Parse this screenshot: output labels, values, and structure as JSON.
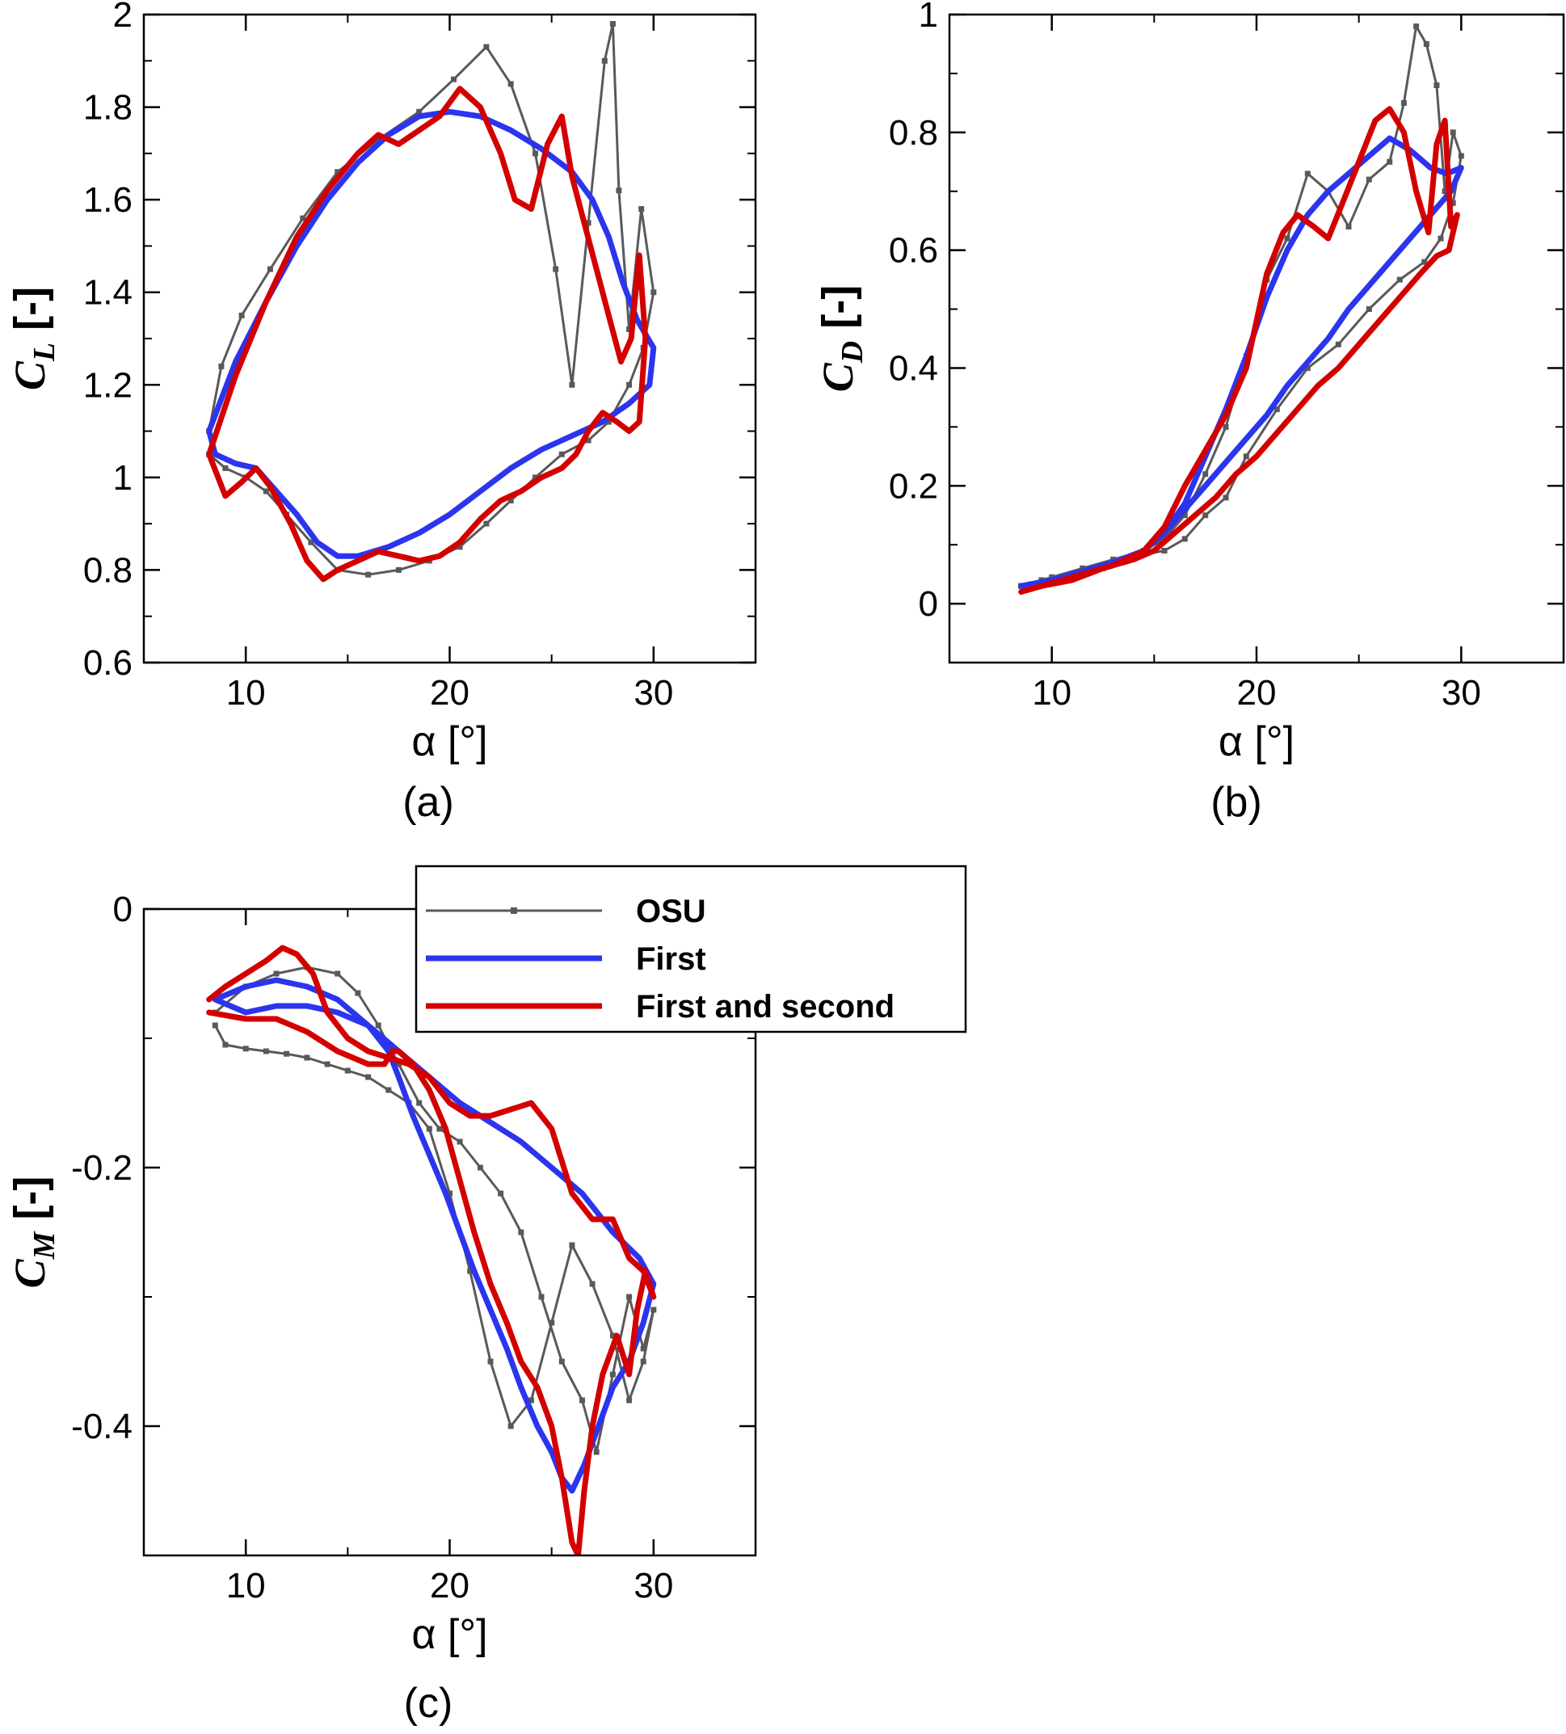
{
  "figure": {
    "legend": {
      "entries": [
        {
          "label": "OSU",
          "color": "#595959",
          "marker": "square"
        },
        {
          "label": "First",
          "color": "#2b35ee",
          "marker": "none"
        },
        {
          "label": "First and second",
          "color": "#d40000",
          "marker": "none"
        }
      ]
    }
  },
  "chart_data": [
    {
      "type": "line",
      "caption": "(a)",
      "xlabel": "α [°]",
      "ylabel_symbol": "C",
      "ylabel_sub": "L",
      "ylabel_unit": " [-]",
      "xlim": [
        5,
        35
      ],
      "ylim": [
        0.6,
        2.0
      ],
      "xticks": [
        10,
        20,
        30
      ],
      "yticks": [
        0.6,
        0.8,
        1.0,
        1.2,
        1.4,
        1.6,
        1.8,
        2.0
      ],
      "ytick_labels": [
        "0.6",
        "0.8",
        "1",
        "1.2",
        "1.4",
        "1.6",
        "1.8",
        "2"
      ],
      "series": [
        {
          "name": "OSU",
          "x": [
            8.2,
            8.8,
            9.8,
            11.2,
            12.8,
            14.5,
            16.5,
            18.5,
            20.2,
            21.8,
            23.0,
            24.2,
            25.2,
            26.0,
            26.8,
            27.6,
            28.0,
            28.3,
            28.8,
            29.4,
            30.0,
            29.5,
            28.8,
            27.8,
            26.8,
            25.5,
            24.2,
            23.0,
            21.8,
            20.5,
            19.0,
            17.5,
            16.0,
            14.5,
            13.2,
            12.0,
            11.0,
            10.0,
            9.0,
            8.2
          ],
          "y": [
            1.1,
            1.24,
            1.35,
            1.45,
            1.56,
            1.66,
            1.73,
            1.79,
            1.86,
            1.93,
            1.85,
            1.7,
            1.45,
            1.2,
            1.55,
            1.9,
            1.98,
            1.62,
            1.32,
            1.58,
            1.4,
            1.28,
            1.2,
            1.12,
            1.08,
            1.05,
            1.0,
            0.95,
            0.9,
            0.85,
            0.82,
            0.8,
            0.79,
            0.8,
            0.86,
            0.92,
            0.97,
            1.0,
            1.02,
            1.05
          ]
        },
        {
          "name": "First",
          "x": [
            8.2,
            9.5,
            11.0,
            12.5,
            14.0,
            15.5,
            17.0,
            18.5,
            20.0,
            21.5,
            23.0,
            24.5,
            26.0,
            27.0,
            27.8,
            28.5,
            29.2,
            30.0,
            29.8,
            28.8,
            27.5,
            26.0,
            24.5,
            23.0,
            21.5,
            20.0,
            18.5,
            17.0,
            15.5,
            14.5,
            13.5,
            12.5,
            11.5,
            10.5,
            9.5,
            8.5,
            8.2
          ],
          "y": [
            1.1,
            1.25,
            1.38,
            1.5,
            1.6,
            1.68,
            1.74,
            1.78,
            1.79,
            1.78,
            1.75,
            1.71,
            1.66,
            1.6,
            1.52,
            1.42,
            1.34,
            1.28,
            1.2,
            1.16,
            1.12,
            1.09,
            1.06,
            1.02,
            0.97,
            0.92,
            0.88,
            0.85,
            0.83,
            0.83,
            0.86,
            0.92,
            0.97,
            1.02,
            1.03,
            1.05,
            1.1
          ]
        },
        {
          "name": "First and second",
          "x": [
            8.2,
            9.5,
            11.0,
            12.5,
            14.0,
            15.5,
            16.5,
            17.5,
            18.5,
            19.5,
            20.5,
            21.5,
            22.5,
            23.2,
            24.0,
            24.8,
            25.5,
            26.0,
            26.6,
            27.2,
            27.8,
            28.4,
            28.9,
            29.3,
            29.6,
            29.3,
            28.8,
            28.2,
            27.5,
            26.8,
            26.2,
            25.5,
            24.5,
            23.5,
            22.5,
            21.5,
            20.5,
            19.5,
            18.5,
            17.5,
            16.5,
            15.5,
            14.5,
            13.8,
            13.0,
            12.2,
            11.2,
            10.5,
            9.8,
            9.0,
            8.2
          ],
          "y": [
            1.05,
            1.22,
            1.38,
            1.52,
            1.62,
            1.7,
            1.74,
            1.72,
            1.75,
            1.78,
            1.84,
            1.8,
            1.7,
            1.6,
            1.58,
            1.72,
            1.78,
            1.65,
            1.55,
            1.45,
            1.35,
            1.25,
            1.3,
            1.48,
            1.3,
            1.12,
            1.1,
            1.12,
            1.14,
            1.1,
            1.05,
            1.02,
            1.0,
            0.97,
            0.95,
            0.91,
            0.86,
            0.83,
            0.82,
            0.83,
            0.84,
            0.82,
            0.8,
            0.78,
            0.82,
            0.9,
            0.98,
            1.02,
            0.99,
            0.96,
            1.05
          ]
        }
      ]
    },
    {
      "type": "line",
      "caption": "(b)",
      "xlabel": "α [°]",
      "ylabel_symbol": "C",
      "ylabel_sub": "D",
      "ylabel_unit": " [-]",
      "xlim": [
        5,
        35
      ],
      "ylim": [
        -0.1,
        1.0
      ],
      "xticks": [
        10,
        20,
        30
      ],
      "yticks": [
        0,
        0.2,
        0.4,
        0.6,
        0.8,
        1.0
      ],
      "ytick_labels": [
        "0",
        "0.2",
        "0.4",
        "0.6",
        "0.8",
        "1"
      ],
      "series": [
        {
          "name": "OSU",
          "x": [
            8.5,
            10.0,
            11.5,
            13.0,
            14.5,
            15.5,
            16.5,
            17.5,
            18.5,
            19.5,
            20.5,
            21.5,
            22.5,
            23.5,
            24.5,
            25.5,
            26.5,
            27.2,
            27.8,
            28.3,
            28.8,
            29.2,
            29.6,
            30.0,
            29.6,
            29.0,
            28.2,
            27.0,
            25.5,
            24.0,
            22.5,
            21.0,
            19.5,
            18.5,
            17.5,
            16.5,
            15.5,
            14.0,
            12.5,
            11.0,
            9.5,
            8.5
          ],
          "y": [
            0.03,
            0.045,
            0.06,
            0.075,
            0.09,
            0.11,
            0.15,
            0.22,
            0.3,
            0.42,
            0.55,
            0.62,
            0.73,
            0.7,
            0.64,
            0.72,
            0.75,
            0.85,
            0.98,
            0.95,
            0.88,
            0.7,
            0.8,
            0.76,
            0.68,
            0.62,
            0.58,
            0.55,
            0.5,
            0.44,
            0.4,
            0.33,
            0.25,
            0.18,
            0.15,
            0.11,
            0.09,
            0.08,
            0.06,
            0.05,
            0.04,
            0.03
          ]
        },
        {
          "name": "First",
          "x": [
            8.5,
            10.0,
            11.5,
            13.0,
            14.5,
            15.5,
            16.5,
            17.5,
            18.5,
            19.5,
            20.5,
            21.5,
            22.5,
            23.5,
            24.5,
            25.5,
            26.5,
            27.5,
            28.5,
            29.3,
            30.0,
            29.5,
            28.5,
            27.5,
            26.5,
            25.5,
            24.5,
            23.5,
            22.5,
            21.5,
            20.5,
            19.5,
            18.5,
            17.5,
            16.5,
            15.5,
            14.5,
            13.0,
            11.5,
            10.0,
            8.5
          ],
          "y": [
            0.03,
            0.04,
            0.055,
            0.07,
            0.09,
            0.12,
            0.17,
            0.25,
            0.33,
            0.42,
            0.52,
            0.6,
            0.66,
            0.7,
            0.73,
            0.76,
            0.79,
            0.77,
            0.74,
            0.73,
            0.74,
            0.7,
            0.66,
            0.62,
            0.58,
            0.54,
            0.5,
            0.45,
            0.41,
            0.37,
            0.32,
            0.28,
            0.24,
            0.2,
            0.16,
            0.12,
            0.09,
            0.07,
            0.05,
            0.04,
            0.03
          ]
        },
        {
          "name": "First and second",
          "x": [
            8.5,
            10.0,
            11.5,
            13.0,
            14.5,
            15.5,
            16.5,
            17.5,
            18.5,
            19.5,
            20.5,
            21.3,
            22.0,
            22.8,
            23.5,
            24.2,
            25.0,
            25.8,
            26.5,
            27.2,
            27.8,
            28.4,
            28.8,
            29.2,
            29.5,
            29.8,
            29.4,
            28.8,
            28.0,
            27.0,
            26.0,
            25.0,
            24.0,
            23.0,
            22.0,
            21.0,
            20.0,
            19.0,
            18.0,
            17.0,
            16.0,
            15.0,
            14.0,
            12.5,
            11.0,
            9.5,
            8.5
          ],
          "y": [
            0.02,
            0.035,
            0.05,
            0.065,
            0.09,
            0.13,
            0.2,
            0.26,
            0.32,
            0.4,
            0.56,
            0.63,
            0.66,
            0.64,
            0.62,
            0.68,
            0.75,
            0.82,
            0.84,
            0.8,
            0.7,
            0.63,
            0.78,
            0.82,
            0.64,
            0.66,
            0.6,
            0.59,
            0.56,
            0.52,
            0.48,
            0.44,
            0.4,
            0.37,
            0.33,
            0.29,
            0.25,
            0.22,
            0.18,
            0.15,
            0.12,
            0.09,
            0.075,
            0.06,
            0.04,
            0.03,
            0.02
          ]
        }
      ]
    },
    {
      "type": "line",
      "caption": "(c)",
      "xlabel": "α [°]",
      "ylabel_symbol": "C",
      "ylabel_sub": "M",
      "ylabel_unit": " [-]",
      "xlim": [
        5,
        35
      ],
      "ylim": [
        -0.5,
        0.0
      ],
      "xticks": [
        10,
        20,
        30
      ],
      "yticks": [
        0,
        -0.2,
        -0.4
      ],
      "ytick_labels": [
        "0",
        "-0.2",
        "-0.4"
      ],
      "series": [
        {
          "name": "OSU",
          "x": [
            8.5,
            10.0,
            11.5,
            13.0,
            14.5,
            15.5,
            16.5,
            17.5,
            18.5,
            19.5,
            20.5,
            21.5,
            22.5,
            23.5,
            24.5,
            25.5,
            26.5,
            27.2,
            28.0,
            28.8,
            29.5,
            30.0,
            29.5,
            28.8,
            28.0,
            27.0,
            26.0,
            25.0,
            24.0,
            23.0,
            22.0,
            21.0,
            20.0,
            19.0,
            18.0,
            17.0,
            16.0,
            15.0,
            14.0,
            13.0,
            12.0,
            11.0,
            10.0,
            9.0,
            8.5
          ],
          "y": [
            -0.08,
            -0.06,
            -0.05,
            -0.045,
            -0.05,
            -0.065,
            -0.09,
            -0.12,
            -0.15,
            -0.17,
            -0.18,
            -0.2,
            -0.22,
            -0.25,
            -0.3,
            -0.35,
            -0.38,
            -0.42,
            -0.36,
            -0.3,
            -0.34,
            -0.31,
            -0.35,
            -0.38,
            -0.33,
            -0.29,
            -0.26,
            -0.32,
            -0.38,
            -0.4,
            -0.35,
            -0.28,
            -0.22,
            -0.17,
            -0.15,
            -0.14,
            -0.13,
            -0.125,
            -0.12,
            -0.115,
            -0.112,
            -0.11,
            -0.108,
            -0.105,
            -0.09
          ]
        },
        {
          "name": "First",
          "x": [
            8.5,
            10.0,
            11.5,
            13.0,
            14.5,
            16.0,
            17.5,
            19.0,
            20.5,
            22.0,
            23.5,
            25.0,
            26.5,
            28.0,
            29.3,
            30.0,
            29.5,
            28.8,
            28.0,
            27.3,
            26.6,
            26.0,
            25.5,
            25.0,
            24.3,
            23.5,
            22.8,
            22.0,
            21.2,
            20.5,
            19.8,
            19.0,
            18.2,
            17.5,
            17.0,
            16.0,
            14.5,
            13.0,
            11.5,
            10.0,
            8.5
          ],
          "y": [
            -0.07,
            -0.06,
            -0.055,
            -0.06,
            -0.07,
            -0.09,
            -0.11,
            -0.13,
            -0.15,
            -0.165,
            -0.18,
            -0.2,
            -0.22,
            -0.25,
            -0.27,
            -0.29,
            -0.32,
            -0.35,
            -0.37,
            -0.4,
            -0.43,
            -0.45,
            -0.44,
            -0.42,
            -0.4,
            -0.37,
            -0.34,
            -0.31,
            -0.28,
            -0.25,
            -0.22,
            -0.19,
            -0.16,
            -0.13,
            -0.11,
            -0.09,
            -0.08,
            -0.075,
            -0.075,
            -0.08,
            -0.07
          ]
        },
        {
          "name": "First and second",
          "x": [
            8.2,
            9.0,
            10.0,
            11.0,
            11.8,
            12.5,
            13.3,
            14.0,
            15.0,
            16.0,
            17.0,
            18.0,
            19.0,
            20.0,
            21.0,
            22.0,
            23.0,
            24.0,
            25.0,
            26.0,
            27.0,
            28.0,
            28.8,
            29.5,
            30.0,
            29.6,
            29.2,
            28.8,
            28.2,
            27.5,
            27.0,
            26.6,
            26.3,
            26.0,
            25.5,
            25.0,
            24.3,
            23.5,
            22.8,
            22.0,
            21.2,
            20.5,
            19.8,
            19.0,
            18.2,
            17.5,
            17.2,
            16.8,
            16.0,
            14.5,
            13.0,
            11.5,
            10.0,
            8.2
          ],
          "y": [
            -0.07,
            -0.06,
            -0.05,
            -0.04,
            -0.03,
            -0.035,
            -0.05,
            -0.08,
            -0.1,
            -0.11,
            -0.115,
            -0.12,
            -0.13,
            -0.15,
            -0.16,
            -0.16,
            -0.155,
            -0.15,
            -0.17,
            -0.22,
            -0.24,
            -0.24,
            -0.27,
            -0.28,
            -0.3,
            -0.28,
            -0.31,
            -0.36,
            -0.33,
            -0.36,
            -0.4,
            -0.45,
            -0.5,
            -0.49,
            -0.44,
            -0.4,
            -0.37,
            -0.35,
            -0.32,
            -0.29,
            -0.25,
            -0.21,
            -0.17,
            -0.14,
            -0.12,
            -0.11,
            -0.11,
            -0.12,
            -0.12,
            -0.11,
            -0.095,
            -0.085,
            -0.085,
            -0.08
          ]
        }
      ]
    }
  ]
}
